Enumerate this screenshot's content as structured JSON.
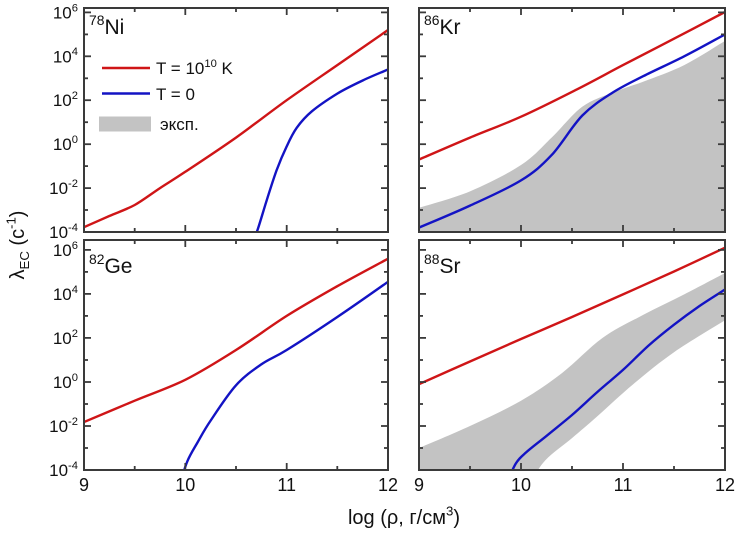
{
  "figure": {
    "background": "#ffffff",
    "axis_color": "#3a3a3a",
    "text_color": "#111111",
    "description": "Electron-capture rates for four neutron-rich nuclei vs density"
  },
  "colors": {
    "red_curve": "#cf1517",
    "blue_curve": "#1313c4",
    "band_gray": "#c3c3c3"
  },
  "x_axis": {
    "title": "log (ρ, г/см³)",
    "title_tokens": [
      {
        "t": "log (ρ, г/см"
      },
      {
        "t": "3",
        "s": "sup"
      },
      {
        "t": ")"
      }
    ],
    "major_ticks": [
      9,
      10,
      11,
      12
    ],
    "minor_ticks": [
      9.5,
      10.5,
      11.5
    ],
    "range": [
      9,
      12
    ]
  },
  "y_axis": {
    "title": "λEC (с⁻¹)",
    "title_tokens": [
      {
        "t": "λ"
      },
      {
        "t": "EC",
        "s": "sub"
      },
      {
        "t": " (с"
      },
      {
        "t": "-1",
        "s": "sup"
      },
      {
        "t": ")"
      }
    ],
    "major_tick_exponents": [
      6,
      4,
      2,
      0,
      -2,
      -4
    ],
    "minor_tick_exponents": [
      5,
      3,
      1,
      -1,
      -3
    ],
    "tick_label_base": "10",
    "range_log10": [
      -4,
      6
    ]
  },
  "legend": {
    "location": "panel-78ni-upper-left",
    "entries": [
      {
        "swatch": "line",
        "color_key": "red_curve",
        "label": "T = 10¹⁰ K",
        "tokens": [
          {
            "t": "T = 10"
          },
          {
            "t": "10",
            "s": "sup"
          },
          {
            "t": " K"
          }
        ]
      },
      {
        "swatch": "line",
        "color_key": "blue_curve",
        "label": "T = 0",
        "tokens": [
          {
            "t": "T = 0"
          }
        ]
      },
      {
        "swatch": "patch",
        "color_key": "band_gray",
        "label": "эксп.",
        "tokens": [
          {
            "t": "эксп."
          }
        ]
      }
    ]
  },
  "chart_data": [
    {
      "panel": "78Ni",
      "grid_pos": "top-left",
      "label": {
        "mass": "78",
        "element": "Ni",
        "display": "⁷⁸Ni"
      },
      "type": "line",
      "x_is": "log10 density (г/см³)",
      "y_is": "log10 rate (с⁻¹)",
      "xlim": [
        9,
        12
      ],
      "ylim_log10": [
        -4,
        6
      ],
      "has_legend": true,
      "series": [
        {
          "name": "T = 10¹⁰ K",
          "color_key": "red_curve",
          "points_log10": [
            [
              9,
              -3.78
            ],
            [
              9.25,
              -3.27
            ],
            [
              9.5,
              -2.77
            ],
            [
              9.75,
              -2.0
            ],
            [
              10,
              -1.26
            ],
            [
              10.5,
              0.3
            ],
            [
              11,
              2.0
            ],
            [
              11.5,
              3.6
            ],
            [
              12,
              5.2
            ]
          ]
        },
        {
          "name": "T = 0",
          "color_key": "blue_curve",
          "points_log10": [
            [
              10.66,
              -4.6
            ],
            [
              10.72,
              -3.8
            ],
            [
              10.8,
              -2.6
            ],
            [
              10.9,
              -1.2
            ],
            [
              11,
              -0.1
            ],
            [
              11.1,
              0.75
            ],
            [
              11.25,
              1.5
            ],
            [
              11.5,
              2.3
            ],
            [
              11.75,
              2.9
            ],
            [
              12,
              3.4
            ]
          ]
        }
      ],
      "band": null
    },
    {
      "panel": "86Kr",
      "grid_pos": "top-right",
      "label": {
        "mass": "86",
        "element": "Kr",
        "display": "⁸⁶Kr"
      },
      "type": "line",
      "x_is": "log10 density (г/см³)",
      "y_is": "log10 rate (с⁻¹)",
      "xlim": [
        9,
        12
      ],
      "ylim_log10": [
        -4,
        6
      ],
      "has_legend": false,
      "series": [
        {
          "name": "T = 10¹⁰ K",
          "color_key": "red_curve",
          "points_log10": [
            [
              9,
              -0.7
            ],
            [
              9.5,
              0.3
            ],
            [
              10,
              1.25
            ],
            [
              10.55,
              2.5
            ],
            [
              11,
              3.6
            ],
            [
              11.5,
              4.8
            ],
            [
              12,
              6.02
            ]
          ]
        },
        {
          "name": "T = 0",
          "color_key": "blue_curve",
          "points_log10": [
            [
              9,
              -3.8
            ],
            [
              9.5,
              -2.8
            ],
            [
              10,
              -1.65
            ],
            [
              10.3,
              -0.5
            ],
            [
              10.6,
              1.3
            ],
            [
              10.9,
              2.35
            ],
            [
              11.2,
              3.1
            ],
            [
              11.6,
              4.0
            ],
            [
              12,
              5.0
            ]
          ]
        }
      ],
      "band": {
        "name": "эксп.",
        "upper_log10": [
          [
            9,
            -2.9
          ],
          [
            9.5,
            -2.15
          ],
          [
            10,
            -0.95
          ],
          [
            10.3,
            0.3
          ],
          [
            10.6,
            1.7
          ],
          [
            10.9,
            2.35
          ],
          [
            11.2,
            2.85
          ],
          [
            11.6,
            3.6
          ],
          [
            12,
            4.7
          ]
        ],
        "lower_log10": "panel-bottom"
      }
    },
    {
      "panel": "82Ge",
      "grid_pos": "bottom-left",
      "label": {
        "mass": "82",
        "element": "Ge",
        "display": "⁸²Ge"
      },
      "type": "line",
      "x_is": "log10 density (г/см³)",
      "y_is": "log10 rate (с⁻¹)",
      "xlim": [
        9,
        12
      ],
      "ylim_log10": [
        -4,
        6
      ],
      "has_legend": false,
      "series": [
        {
          "name": "T = 10¹⁰ K",
          "color_key": "red_curve",
          "points_log10": [
            [
              9,
              -1.82
            ],
            [
              9.5,
              -0.85
            ],
            [
              10,
              0.1
            ],
            [
              10.5,
              1.45
            ],
            [
              11,
              3.0
            ],
            [
              11.5,
              4.35
            ],
            [
              12,
              5.6
            ]
          ]
        },
        {
          "name": "T = 0",
          "color_key": "blue_curve",
          "points_log10": [
            [
              9.95,
              -4.6
            ],
            [
              10.02,
              -3.6
            ],
            [
              10.12,
              -2.75
            ],
            [
              10.25,
              -1.75
            ],
            [
              10.5,
              -0.15
            ],
            [
              10.75,
              0.8
            ],
            [
              11,
              1.45
            ],
            [
              11.5,
              2.95
            ],
            [
              12,
              4.55
            ]
          ]
        }
      ],
      "band": null
    },
    {
      "panel": "88Sr",
      "grid_pos": "bottom-right",
      "label": {
        "mass": "88",
        "element": "Sr",
        "display": "⁸⁸Sr"
      },
      "type": "line",
      "x_is": "log10 density (г/см³)",
      "y_is": "log10 rate (с⁻¹)",
      "xlim": [
        9,
        12
      ],
      "ylim_log10": [
        -4,
        6
      ],
      "has_legend": false,
      "series": [
        {
          "name": "T = 10¹⁰ K",
          "color_key": "red_curve",
          "points_log10": [
            [
              9,
              -0.1
            ],
            [
              9.5,
              0.93
            ],
            [
              10,
              1.95
            ],
            [
              10.5,
              2.95
            ],
            [
              11,
              3.98
            ],
            [
              11.5,
              5.02
            ],
            [
              12,
              6.1
            ]
          ]
        },
        {
          "name": "T = 0",
          "color_key": "blue_curve",
          "points_log10": [
            [
              9.86,
              -4.6
            ],
            [
              9.95,
              -3.7
            ],
            [
              10.05,
              -3.2
            ],
            [
              10.25,
              -2.45
            ],
            [
              10.5,
              -1.5
            ],
            [
              10.75,
              -0.45
            ],
            [
              11.0,
              0.55
            ],
            [
              11.25,
              1.65
            ],
            [
              11.5,
              2.6
            ],
            [
              11.75,
              3.45
            ],
            [
              12,
              4.2
            ]
          ]
        }
      ],
      "band": {
        "name": "эксп.",
        "upper_log10": [
          [
            9,
            -3.0
          ],
          [
            9.5,
            -2.0
          ],
          [
            10,
            -0.85
          ],
          [
            10.4,
            0.4
          ],
          [
            10.8,
            2.0
          ],
          [
            11.2,
            3.05
          ],
          [
            11.6,
            3.98
          ],
          [
            12,
            4.95
          ]
        ],
        "lower_log10": [
          [
            10.1,
            -4.5
          ],
          [
            10.24,
            -3.55
          ],
          [
            10.5,
            -2.55
          ],
          [
            10.75,
            -1.55
          ],
          [
            11.1,
            -0.1
          ],
          [
            11.5,
            1.35
          ],
          [
            12,
            2.8
          ]
        ]
      }
    }
  ]
}
